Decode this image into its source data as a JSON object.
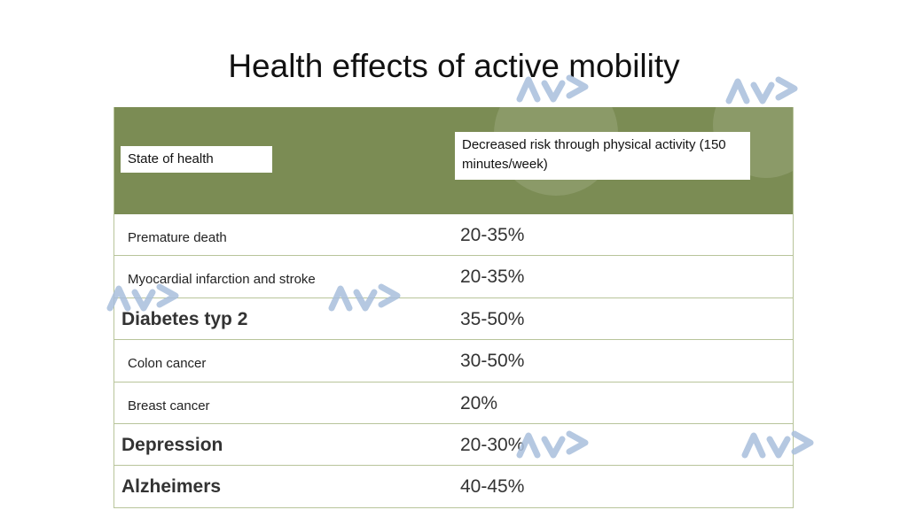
{
  "title": "Health effects of active mobility",
  "table": {
    "headers": [
      "State of health",
      "Decreased risk through physical activity (150 minutes/week)"
    ],
    "rows": [
      {
        "condition": "Premature death",
        "risk": "20-35%",
        "style": "small"
      },
      {
        "condition": "Myocardial infarction and stroke",
        "risk": "20-35%",
        "style": "small"
      },
      {
        "condition": "Diabetes typ 2",
        "risk": "35-50%",
        "style": "big"
      },
      {
        "condition": "Colon cancer",
        "risk": "30-50%",
        "style": "small"
      },
      {
        "condition": "Breast cancer",
        "risk": "20%",
        "style": "small"
      },
      {
        "condition": "Depression",
        "risk": "20-30%",
        "style": "big"
      },
      {
        "condition": "Alzheimers",
        "risk": "40-45%",
        "style": "big"
      }
    ]
  },
  "colors": {
    "header_bg": "#7b8c54",
    "watermark": "#a9bfdc"
  },
  "watermark_icon": "av-logo-icon"
}
